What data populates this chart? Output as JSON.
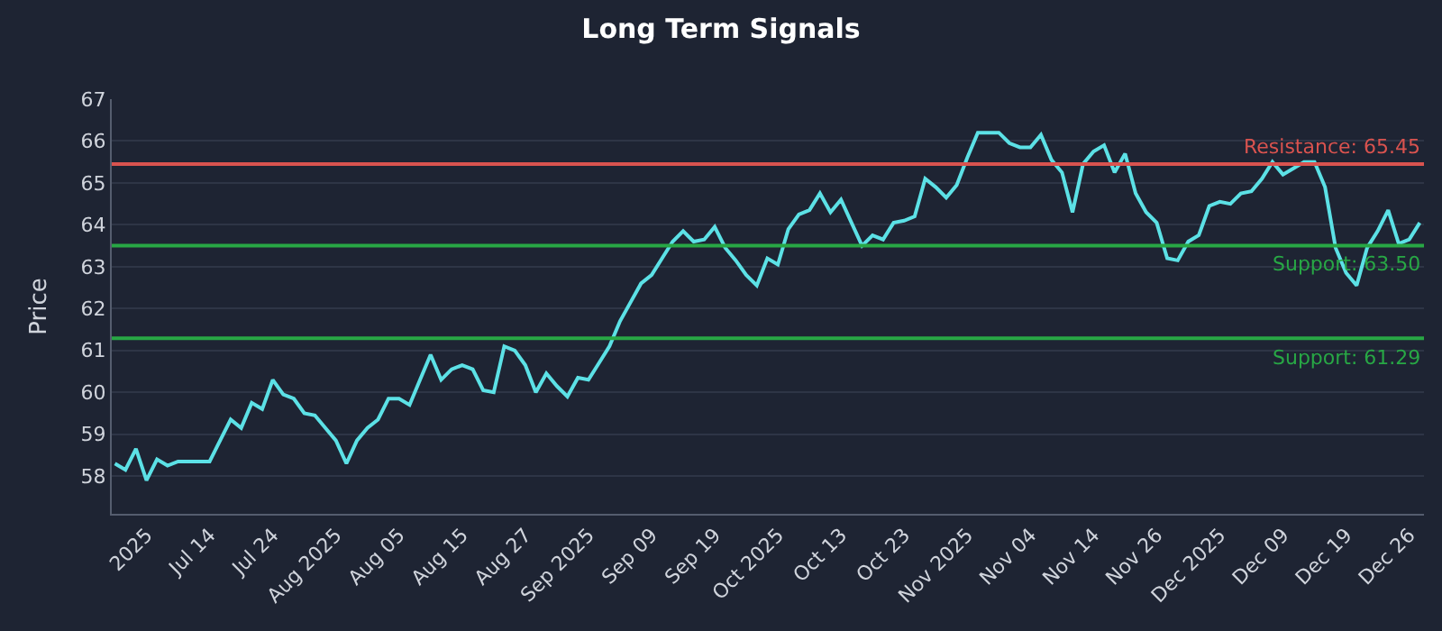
{
  "chart_data": {
    "type": "line",
    "title": "Long Term Signals",
    "ylabel": "Price",
    "categories": [
      null,
      null,
      null,
      "2025",
      null,
      null,
      null,
      null,
      null,
      "Jul 14",
      null,
      null,
      null,
      null,
      null,
      "Jul 24",
      null,
      null,
      null,
      null,
      null,
      "Aug 2025",
      null,
      null,
      null,
      null,
      null,
      "Aug 05",
      null,
      null,
      null,
      null,
      null,
      "Aug 15",
      null,
      null,
      null,
      null,
      null,
      "Aug 27",
      null,
      null,
      null,
      null,
      null,
      "Sep 2025",
      null,
      null,
      null,
      null,
      null,
      "Sep 09",
      null,
      null,
      null,
      null,
      null,
      "Sep 19",
      null,
      null,
      null,
      null,
      null,
      "Oct 2025",
      null,
      null,
      null,
      null,
      null,
      "Oct 13",
      null,
      null,
      null,
      null,
      null,
      "Oct 23",
      null,
      null,
      null,
      null,
      null,
      "Nov 2025",
      null,
      null,
      null,
      null,
      null,
      "Nov 04",
      null,
      null,
      null,
      null,
      null,
      "Nov 14",
      null,
      null,
      null,
      null,
      null,
      "Nov 26",
      null,
      null,
      null,
      null,
      null,
      "Dec 2025",
      null,
      null,
      null,
      null,
      null,
      "Dec 09",
      null,
      null,
      null,
      null,
      null,
      "Dec 19",
      null,
      null,
      null,
      null,
      null,
      "Dec 26",
      null
    ],
    "series": [
      {
        "color": "#5ce1e6",
        "values": [
          58.3,
          58.15,
          58.65,
          57.9,
          58.4,
          58.25,
          58.35,
          58.35,
          58.35,
          58.35,
          58.85,
          59.35,
          59.15,
          59.75,
          59.6,
          60.3,
          59.95,
          59.85,
          59.5,
          59.45,
          59.15,
          58.85,
          58.3,
          58.85,
          59.15,
          59.35,
          59.85,
          59.85,
          59.7,
          60.3,
          60.9,
          60.3,
          60.55,
          60.65,
          60.55,
          60.05,
          60.0,
          61.1,
          61.0,
          60.65,
          60.0,
          60.45,
          60.15,
          59.9,
          60.35,
          60.3,
          60.7,
          61.1,
          61.7,
          62.15,
          62.6,
          62.8,
          63.2,
          63.6,
          63.85,
          63.6,
          63.65,
          63.95,
          63.45,
          63.15,
          62.8,
          62.55,
          63.2,
          63.05,
          63.9,
          64.25,
          64.35,
          64.75,
          64.3,
          64.6,
          64.05,
          63.5,
          63.75,
          63.65,
          64.05,
          64.1,
          64.2,
          65.1,
          64.9,
          64.65,
          64.95,
          65.6,
          66.2,
          66.2,
          66.2,
          65.95,
          65.85,
          65.85,
          66.15,
          65.55,
          65.25,
          64.3,
          65.45,
          65.75,
          65.9,
          65.25,
          65.7,
          64.75,
          64.3,
          64.05,
          63.2,
          63.15,
          63.6,
          63.75,
          64.45,
          64.55,
          64.5,
          64.75,
          64.8,
          65.1,
          65.5,
          65.2,
          65.35,
          65.5,
          65.5,
          64.9,
          63.45,
          62.85,
          62.55,
          63.45,
          63.85,
          64.35,
          63.55,
          63.65,
          64.05
        ]
      }
    ],
    "ylim": [
      57.1,
      67
    ],
    "yticks": [
      58,
      59,
      60,
      61,
      62,
      63,
      64,
      65,
      66,
      67
    ],
    "grid": "y",
    "marker": "none",
    "line_style": "solid",
    "ref_lines": [
      {
        "axis": "y",
        "value": 65.45,
        "label": "Resistance: 65.45",
        "color": "#d9534f"
      },
      {
        "axis": "y",
        "value": 63.5,
        "label": "Support: 63.50",
        "color": "#28a745"
      },
      {
        "axis": "y",
        "value": 61.29,
        "label": "Support: 61.29",
        "color": "#28a745"
      }
    ]
  }
}
